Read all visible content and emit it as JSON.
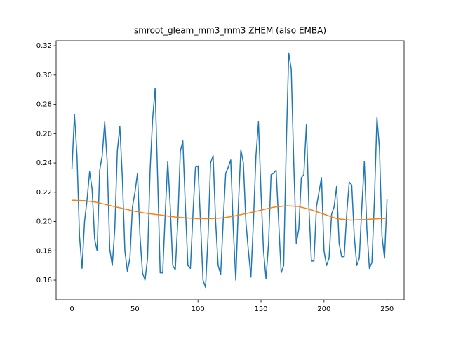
{
  "chart_data": {
    "type": "line",
    "title": "smroot_gleam_mm3_mm3 ZHEM (also EMBA)",
    "x": [
      0,
      2,
      4,
      6,
      8,
      10,
      12,
      14,
      16,
      18,
      20,
      22,
      24,
      26,
      28,
      30,
      32,
      34,
      36,
      38,
      40,
      42,
      44,
      46,
      48,
      50,
      52,
      54,
      56,
      58,
      60,
      62,
      64,
      66,
      68,
      70,
      72,
      74,
      76,
      78,
      80,
      82,
      84,
      86,
      88,
      90,
      92,
      94,
      96,
      98,
      100,
      102,
      104,
      106,
      108,
      110,
      112,
      114,
      116,
      118,
      120,
      122,
      124,
      126,
      128,
      130,
      132,
      134,
      136,
      138,
      140,
      142,
      144,
      146,
      148,
      150,
      152,
      154,
      156,
      158,
      160,
      162,
      164,
      166,
      168,
      170,
      172,
      174,
      176,
      178,
      180,
      182,
      184,
      186,
      188,
      190,
      192,
      194,
      196,
      198,
      200,
      202,
      204,
      206,
      208,
      210,
      212,
      214,
      216,
      218,
      220,
      222,
      224,
      226,
      228,
      230,
      232,
      234,
      236,
      238,
      240,
      242,
      244,
      246,
      248,
      250
    ],
    "series": [
      {
        "color": "#1f77b4",
        "values": [
          0.236,
          0.273,
          0.245,
          0.19,
          0.168,
          0.2,
          0.215,
          0.234,
          0.222,
          0.188,
          0.18,
          0.235,
          0.245,
          0.268,
          0.24,
          0.181,
          0.17,
          0.195,
          0.248,
          0.265,
          0.23,
          0.18,
          0.166,
          0.175,
          0.21,
          0.22,
          0.233,
          0.19,
          0.165,
          0.16,
          0.175,
          0.235,
          0.27,
          0.291,
          0.23,
          0.165,
          0.165,
          0.205,
          0.241,
          0.21,
          0.17,
          0.167,
          0.2,
          0.248,
          0.255,
          0.21,
          0.17,
          0.168,
          0.205,
          0.237,
          0.238,
          0.2,
          0.16,
          0.155,
          0.19,
          0.24,
          0.245,
          0.2,
          0.17,
          0.164,
          0.2,
          0.233,
          0.237,
          0.242,
          0.195,
          0.16,
          0.21,
          0.249,
          0.24,
          0.2,
          0.18,
          0.162,
          0.2,
          0.245,
          0.268,
          0.22,
          0.18,
          0.161,
          0.185,
          0.232,
          0.233,
          0.235,
          0.2,
          0.165,
          0.17,
          0.25,
          0.315,
          0.304,
          0.24,
          0.185,
          0.195,
          0.23,
          0.232,
          0.266,
          0.21,
          0.173,
          0.173,
          0.21,
          0.22,
          0.23,
          0.18,
          0.17,
          0.175,
          0.205,
          0.21,
          0.224,
          0.185,
          0.176,
          0.176,
          0.205,
          0.227,
          0.225,
          0.19,
          0.17,
          0.175,
          0.21,
          0.241,
          0.195,
          0.168,
          0.172,
          0.215,
          0.271,
          0.25,
          0.19,
          0.175,
          0.215
        ]
      },
      {
        "color": "#ff7f0e",
        "values": [
          0.2145,
          0.2145,
          0.2144,
          0.2144,
          0.2143,
          0.2143,
          0.214,
          0.2138,
          0.2135,
          0.2133,
          0.213,
          0.2126,
          0.2122,
          0.2118,
          0.2114,
          0.211,
          0.2106,
          0.2102,
          0.2098,
          0.2094,
          0.209,
          0.2086,
          0.2082,
          0.2078,
          0.2074,
          0.207,
          0.2067,
          0.2064,
          0.2061,
          0.2058,
          0.2055,
          0.2053,
          0.2051,
          0.2049,
          0.2047,
          0.2045,
          0.2043,
          0.204,
          0.2038,
          0.2035,
          0.2033,
          0.2031,
          0.203,
          0.2028,
          0.2027,
          0.2025,
          0.2024,
          0.2023,
          0.2022,
          0.2021,
          0.202,
          0.202,
          0.202,
          0.202,
          0.202,
          0.202,
          0.2021,
          0.2022,
          0.2023,
          0.2024,
          0.2025,
          0.2028,
          0.2031,
          0.2034,
          0.2037,
          0.204,
          0.2044,
          0.2047,
          0.2051,
          0.2054,
          0.2058,
          0.2062,
          0.2066,
          0.207,
          0.2074,
          0.2078,
          0.2082,
          0.2086,
          0.209,
          0.2094,
          0.2098,
          0.21,
          0.2102,
          0.2104,
          0.2106,
          0.2108,
          0.2107,
          0.2106,
          0.2105,
          0.2104,
          0.2103,
          0.2098,
          0.2094,
          0.2089,
          0.2085,
          0.208,
          0.2074,
          0.2068,
          0.2062,
          0.2056,
          0.205,
          0.2044,
          0.2038,
          0.2032,
          0.2026,
          0.202,
          0.2018,
          0.2016,
          0.2014,
          0.2012,
          0.201,
          0.201,
          0.2011,
          0.2011,
          0.2012,
          0.2012,
          0.2013,
          0.2014,
          0.2016,
          0.2017,
          0.2018,
          0.2019,
          0.202,
          0.202,
          0.2021,
          0.2022
        ]
      }
    ],
    "xlim": [
      -12.55,
      263.55
    ],
    "xticks": [
      0,
      50,
      100,
      150,
      200,
      250
    ],
    "ylim": [
      0.1466,
      0.3234
    ],
    "yticks": [
      0.16,
      0.18,
      {
        "value": 0.2,
        "label": "0.20"
      },
      0.22,
      0.24,
      0.26,
      0.28,
      {
        "value": 0.3,
        "label": "0.30"
      },
      0.32
    ]
  }
}
